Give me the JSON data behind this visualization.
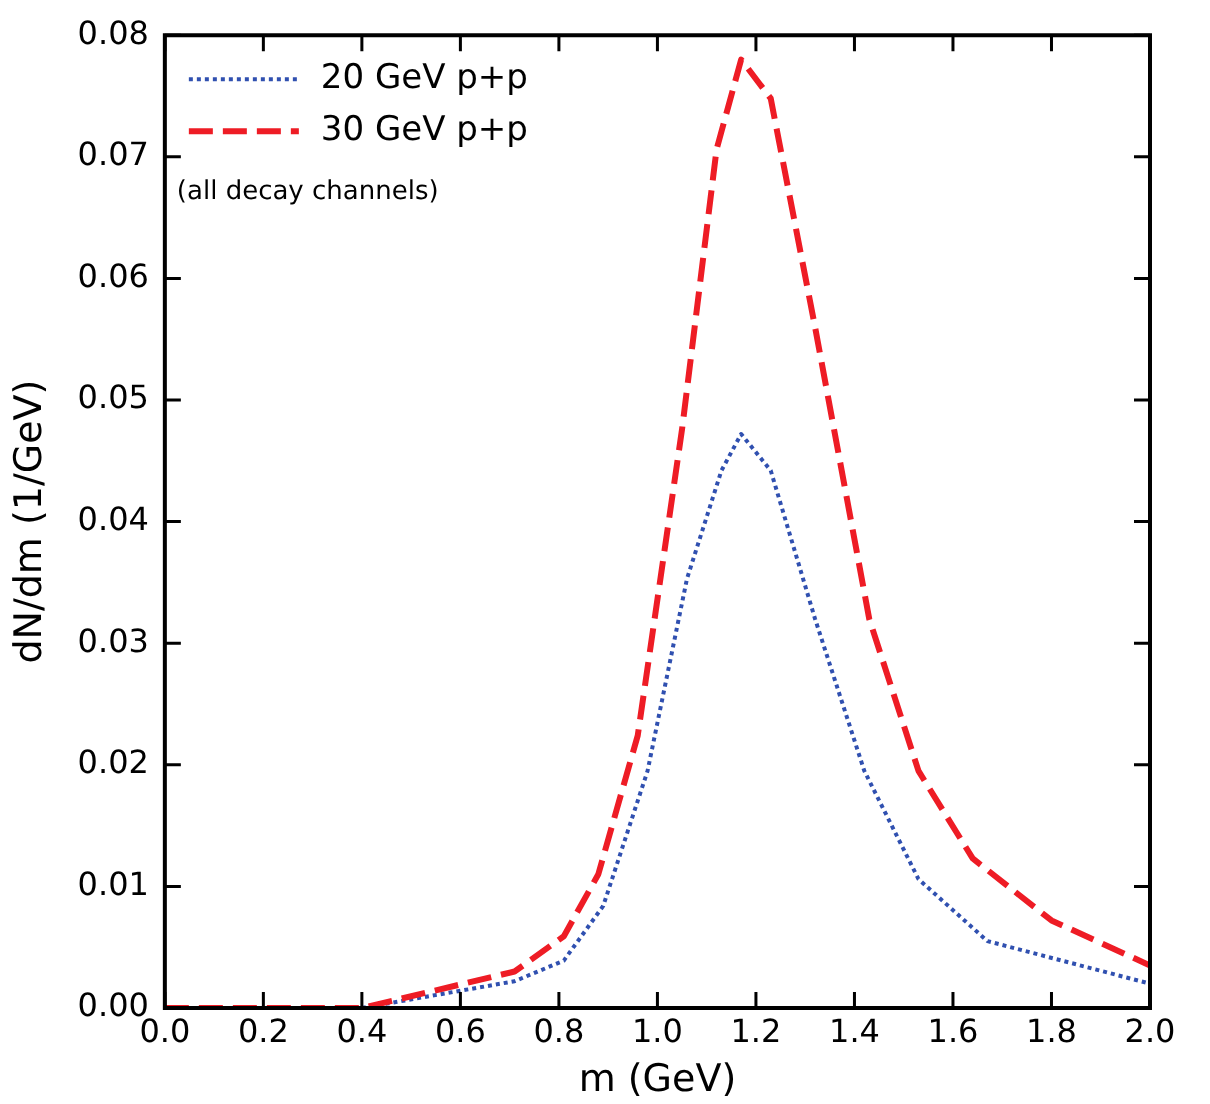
{
  "chart_data": {
    "type": "line",
    "xlabel": "m (GeV)",
    "ylabel": "dN/dm (1/GeV)",
    "xlim": [
      0,
      2
    ],
    "ylim": [
      0,
      0.08
    ],
    "xticks": [
      {
        "value": 0,
        "label": "0.0"
      },
      {
        "value": 0.2,
        "label": "0.2"
      },
      {
        "value": 0.4,
        "label": "0.4"
      },
      {
        "value": 0.6,
        "label": "0.6"
      },
      {
        "value": 0.8,
        "label": "0.8"
      },
      {
        "value": 1,
        "label": "1.0"
      },
      {
        "value": 1.2,
        "label": "1.2"
      },
      {
        "value": 1.4,
        "label": "1.4"
      },
      {
        "value": 1.6,
        "label": "1.6"
      },
      {
        "value": 1.8,
        "label": "1.8"
      },
      {
        "value": 2,
        "label": "2.0"
      }
    ],
    "yticks": [
      {
        "value": 0,
        "label": "0.00"
      },
      {
        "value": 0.01,
        "label": "0.01"
      },
      {
        "value": 0.02,
        "label": "0.02"
      },
      {
        "value": 0.03,
        "label": "0.03"
      },
      {
        "value": 0.04,
        "label": "0.04"
      },
      {
        "value": 0.05,
        "label": "0.05"
      },
      {
        "value": 0.06,
        "label": "0.06"
      },
      {
        "value": 0.07,
        "label": "0.07"
      },
      {
        "value": 0.08,
        "label": "0.08"
      }
    ],
    "grid": false,
    "legend": "top left",
    "marker": "none",
    "annotations": [
      "(all decay channels)"
    ],
    "series": [
      {
        "name": "20 GeV p+p",
        "color": "#3050b0",
        "line_style": "dotted",
        "x": [
          0.4,
          0.71,
          0.81,
          0.89,
          0.98,
          1.06,
          1.13,
          1.17,
          1.23,
          1.32,
          1.42,
          1.53,
          1.67,
          2.0
        ],
        "values": [
          0,
          0.0022,
          0.0039,
          0.0084,
          0.0195,
          0.0353,
          0.0442,
          0.0472,
          0.0442,
          0.032,
          0.0195,
          0.0106,
          0.0055,
          0.002
        ]
      },
      {
        "name": "30 GeV p+p",
        "color": "#ee1c25",
        "line_style": "dashed",
        "x": [
          0,
          0.4,
          0.71,
          0.81,
          0.88,
          0.96,
          1.05,
          1.12,
          1.17,
          1.23,
          1.32,
          1.43,
          1.53,
          1.64,
          1.8,
          2.0
        ],
        "values": [
          0,
          0,
          0.003,
          0.0059,
          0.011,
          0.0224,
          0.0476,
          0.0706,
          0.078,
          0.0748,
          0.056,
          0.032,
          0.0195,
          0.0123,
          0.0072,
          0.0035
        ]
      }
    ]
  }
}
